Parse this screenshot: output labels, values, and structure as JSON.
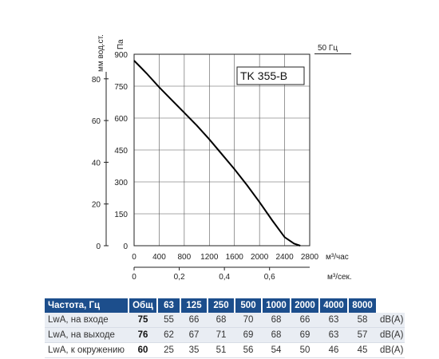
{
  "chart_data": {
    "type": "line",
    "model_label": "TK 355-B",
    "frequency_label": "50 Гц",
    "y_left_label": "мм вод.ст.",
    "y_left_ticks": [
      "0",
      "20",
      "40",
      "60",
      "80"
    ],
    "y_right_label": "Па",
    "y_right_ticks": [
      "0",
      "150",
      "300",
      "450",
      "600",
      "750",
      "900"
    ],
    "x_label": "м³/час",
    "x_ticks": [
      "0",
      "400",
      "800",
      "1200",
      "1600",
      "2000",
      "2400",
      "2800"
    ],
    "x2_label": "м³/сек.",
    "x2_ticks": [
      "0",
      "0,2",
      "0,4",
      "0,6"
    ],
    "xlim": [
      0,
      2800
    ],
    "ylim": [
      0,
      900
    ],
    "grid": true,
    "series": [
      {
        "x": [
          0,
          100,
          200,
          400,
          600,
          800,
          1000,
          1200,
          1400,
          1600,
          1800,
          2000,
          2200,
          2400,
          2550,
          2650
        ],
        "y": [
          870,
          840,
          810,
          745,
          685,
          625,
          565,
          500,
          430,
          360,
          285,
          205,
          120,
          40,
          10,
          0
        ]
      }
    ]
  },
  "noise_table": {
    "header_label": "Частота, Гц",
    "columns": [
      "Общ",
      "63",
      "125",
      "250",
      "500",
      "1000",
      "2000",
      "4000",
      "8000"
    ],
    "rows": [
      {
        "label": "LwA, на входе",
        "values": [
          "75",
          "55",
          "66",
          "68",
          "70",
          "68",
          "66",
          "63",
          "58"
        ],
        "unit": "dB(A)"
      },
      {
        "label": "LwA, на выходе",
        "values": [
          "76",
          "62",
          "67",
          "71",
          "69",
          "68",
          "69",
          "63",
          "57"
        ],
        "unit": "dB(A)"
      },
      {
        "label": "LwA, к окружению",
        "values": [
          "60",
          "25",
          "35",
          "51",
          "56",
          "54",
          "50",
          "46",
          "45"
        ],
        "unit": "dB(A)"
      }
    ]
  }
}
